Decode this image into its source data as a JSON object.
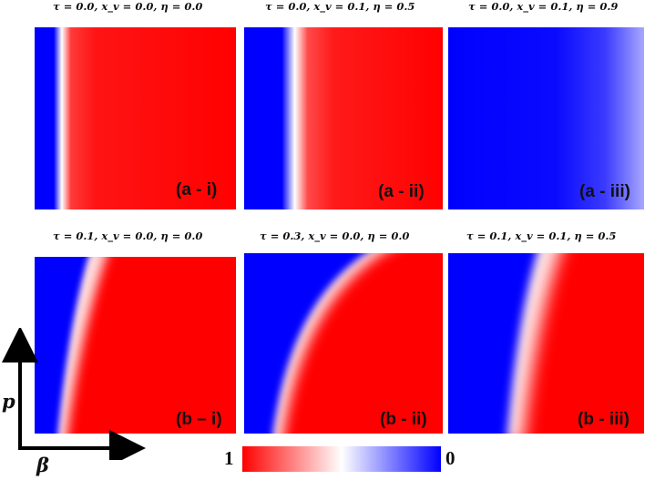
{
  "chart_data": {
    "type": "heatmap",
    "xlabel": "β",
    "ylabel": "p",
    "colorbar": {
      "max_label": "1",
      "min_label": "0",
      "colors": [
        "#ff0000",
        "#ffffff",
        "#0000ff"
      ]
    },
    "panels": [
      {
        "id": "a-i",
        "title": "τ = 0.0, x_v = 0.0, η = 0.0",
        "label": "(a - i)",
        "tau": 0.0,
        "x_v": 0.0,
        "eta": 0.0
      },
      {
        "id": "a-ii",
        "title": "τ = 0.0, x_v = 0.1, η = 0.5",
        "label": "(a - ii)",
        "tau": 0.0,
        "x_v": 0.1,
        "eta": 0.5
      },
      {
        "id": "a-iii",
        "title": "τ = 0.0, x_v = 0.1, η = 0.9",
        "label": "(a - iii)",
        "tau": 0.0,
        "x_v": 0.1,
        "eta": 0.9
      },
      {
        "id": "b-i",
        "title": "τ = 0.1, x_v = 0.0, η = 0.0",
        "label": "(b – i)",
        "tau": 0.1,
        "x_v": 0.0,
        "eta": 0.0
      },
      {
        "id": "b-ii",
        "title": "τ = 0.3, x_v = 0.0, η = 0.0",
        "label": "(b - ii)",
        "tau": 0.3,
        "x_v": 0.0,
        "eta": 0.0
      },
      {
        "id": "b-iii",
        "title": "τ = 0.1, x_v = 0.1, η = 0.5",
        "label": "(b - iii)",
        "tau": 0.1,
        "x_v": 0.1,
        "eta": 0.5
      }
    ]
  }
}
